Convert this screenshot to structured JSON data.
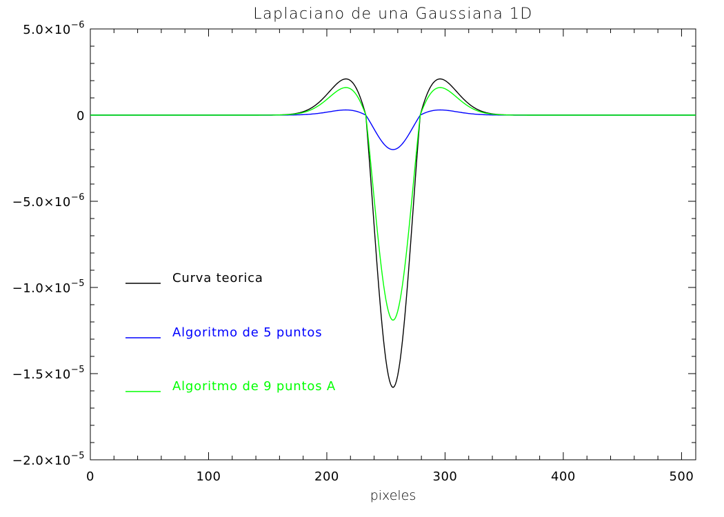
{
  "chart_data": {
    "type": "line",
    "title": "Laplaciano de una Gaussiana 1D",
    "xlabel": "pixeles",
    "ylabel": "",
    "xlim": [
      0,
      512
    ],
    "ylim": [
      -2e-05,
      5e-06
    ],
    "x_ticks": [
      0,
      100,
      200,
      300,
      400,
      500
    ],
    "x_tick_labels": [
      "0",
      "100",
      "200",
      "300",
      "400",
      "500"
    ],
    "y_ticks": [
      5e-06,
      0,
      -5e-06,
      -1e-05,
      -1.5e-05,
      -2e-05
    ],
    "y_tick_labels": [
      {
        "mantissa": "5.0",
        "sign": "",
        "exp": "−6"
      },
      {
        "mantissa": "0",
        "sign": "",
        "exp": ""
      },
      {
        "mantissa": "−5.0",
        "sign": "",
        "exp": "−6"
      },
      {
        "mantissa": "−1.0",
        "sign": "",
        "exp": "−5"
      },
      {
        "mantissa": "−1.5",
        "sign": "",
        "exp": "−5"
      },
      {
        "mantissa": "−2.0",
        "sign": "",
        "exp": "−5"
      }
    ],
    "x_minor_step": 20,
    "y_minor_step": 1e-06,
    "grid": false,
    "legend_position": "left",
    "series": [
      {
        "name": "Curva teorica",
        "color": "#000000",
        "center": 256,
        "sigma": 23,
        "min_value": -1.58e-05,
        "peak_value": 2.1e-06,
        "peak_x": [
          216,
          296
        ]
      },
      {
        "name": "Algoritmo de 5 puntos",
        "color": "#0000ff",
        "center": 256,
        "sigma": 23,
        "min_value": -2e-06,
        "peak_value": 3e-07,
        "peak_x": [
          216,
          296
        ]
      },
      {
        "name": "Algoritmo de 9 puntos A",
        "color": "#00ff00",
        "center": 256,
        "sigma": 23,
        "min_value": -1.19e-05,
        "peak_value": 1.6e-06,
        "peak_x": [
          216,
          296
        ]
      }
    ]
  }
}
